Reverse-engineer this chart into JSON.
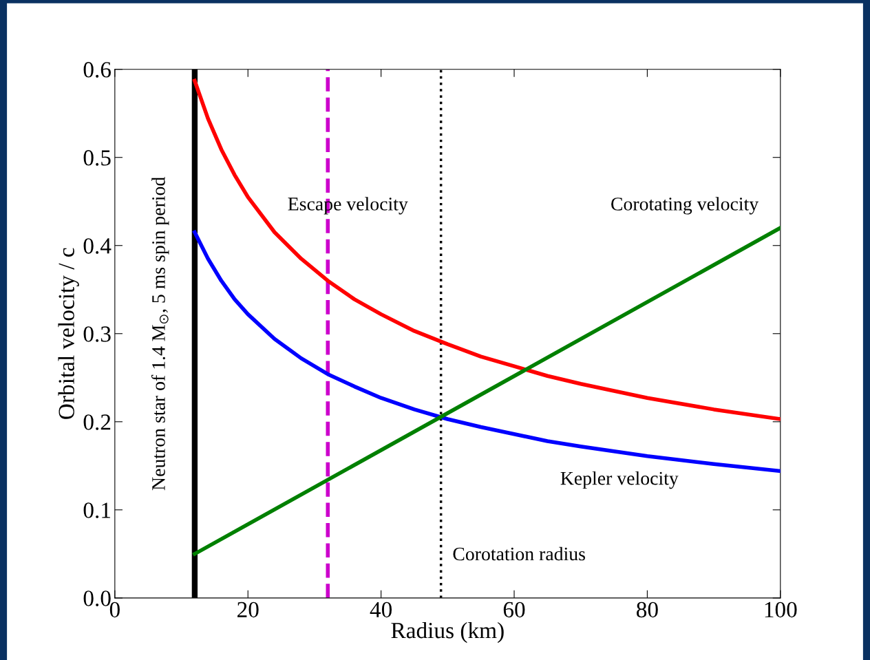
{
  "chart_data": {
    "type": "line",
    "xlabel": "Radius (km)",
    "ylabel": "Orbital velocity / c",
    "xlim": [
      0,
      100
    ],
    "xticks": [
      0,
      20,
      40,
      60,
      80,
      100
    ],
    "ylim": [
      0.0,
      0.6
    ],
    "yticks": [
      {
        "value": 0,
        "label": "0.0"
      },
      0.1,
      0.2,
      0.3,
      0.4,
      0.5,
      0.6
    ],
    "grid": false,
    "legend": false,
    "marker": "none",
    "line_style": "solid",
    "series": [
      {
        "name": "Escape velocity",
        "color": "#ff0000",
        "x": [
          12,
          14,
          16,
          18,
          20,
          24,
          28,
          32,
          36,
          40,
          45,
          50,
          55,
          60,
          65,
          70,
          80,
          90,
          100
        ],
        "values": [
          0.587,
          0.544,
          0.509,
          0.48,
          0.455,
          0.415,
          0.385,
          0.36,
          0.339,
          0.322,
          0.303,
          0.288,
          0.274,
          0.263,
          0.252,
          0.243,
          0.227,
          0.214,
          0.203
        ]
      },
      {
        "name": "Kepler velocity",
        "color": "#0000ff",
        "x": [
          12,
          14,
          16,
          18,
          20,
          24,
          28,
          32,
          36,
          40,
          45,
          50,
          55,
          60,
          65,
          70,
          80,
          90,
          100
        ],
        "values": [
          0.415,
          0.385,
          0.36,
          0.339,
          0.322,
          0.294,
          0.272,
          0.254,
          0.24,
          0.227,
          0.214,
          0.203,
          0.194,
          0.186,
          0.178,
          0.172,
          0.161,
          0.152,
          0.144
        ]
      },
      {
        "name": "Corotating velocity",
        "color": "#008000",
        "x": [
          12,
          100
        ],
        "values": [
          0.05,
          0.42
        ]
      }
    ],
    "ref_lines": [
      {
        "axis": "x",
        "value": 12,
        "label": "Neutron star of 1.4 M$_{⊙}$, 5 ms spin period",
        "color": "#000000",
        "line_style": "solid"
      },
      {
        "axis": "x",
        "value": 32,
        "label": null,
        "color": "#cc00cc",
        "line_style": "dashed"
      },
      {
        "axis": "x",
        "value": 49,
        "label": "Corotation radius",
        "color": "#000000",
        "line_style": "dotted"
      }
    ]
  }
}
